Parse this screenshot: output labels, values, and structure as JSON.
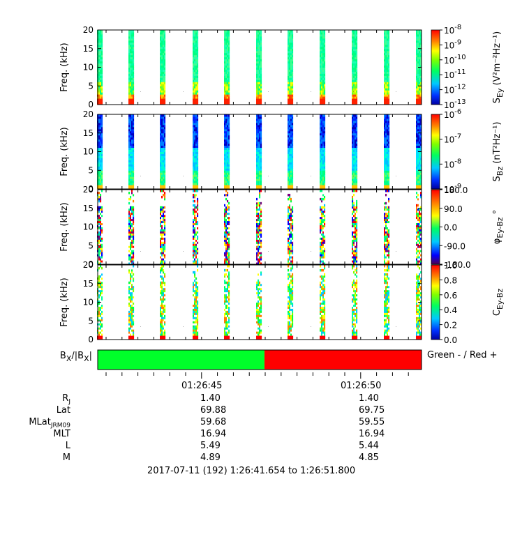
{
  "chart_data": [
    {
      "type": "heatmap",
      "ylabel": "Freq. (kHz)",
      "yticks": [
        "0",
        "5",
        "10",
        "15",
        "20"
      ],
      "ylim": [
        0,
        20
      ],
      "colorbar_label": "S",
      "colorbar_sub": "Ey",
      "colorbar_unit": "(V²m⁻²Hz⁻¹)",
      "colorbar_ticks": [
        "10-8",
        "10-9",
        "10-10",
        "10-11",
        "10-12",
        "10-13"
      ],
      "colorbar_log": true,
      "colormap": "rainbow"
    },
    {
      "type": "heatmap",
      "ylabel": "Freq. (kHz)",
      "yticks": [
        "0",
        "5",
        "10",
        "15",
        "20"
      ],
      "ylim": [
        0,
        20
      ],
      "colorbar_label": "S",
      "colorbar_sub": "Bz",
      "colorbar_unit": "(nT²Hz⁻¹)",
      "colorbar_ticks": [
        "10-6",
        "10-7",
        "10-8",
        "10-9"
      ],
      "colorbar_log": true,
      "colormap": "rainbow"
    },
    {
      "type": "heatmap",
      "ylabel": "Freq. (kHz)",
      "yticks": [
        "0",
        "5",
        "10",
        "15",
        "20"
      ],
      "ylim": [
        0,
        20
      ],
      "colorbar_label": "φ",
      "colorbar_sub": "Ey-Bz",
      "colorbar_unit": "°",
      "colorbar_ticks": [
        "180.0",
        "90.0",
        "0.0",
        "-90.0",
        "-180.0"
      ],
      "colorbar_range": [
        -180,
        180
      ],
      "colormap": "phase"
    },
    {
      "type": "heatmap",
      "ylabel": "Freq. (kHz)",
      "yticks": [
        "0",
        "5",
        "10",
        "15",
        "20"
      ],
      "ylim": [
        0,
        20
      ],
      "colorbar_label": "C",
      "colorbar_sub": "Ey-Bz",
      "colorbar_unit": "",
      "colorbar_ticks": [
        "1.0",
        "0.8",
        "0.6",
        "0.4",
        "0.2",
        "0.0"
      ],
      "colorbar_range": [
        0,
        1
      ],
      "colormap": "rainbow"
    },
    {
      "type": "bar",
      "ylabel": "B",
      "ylabel_sub": "X",
      "ylabel_tail": "/|B",
      "ylabel_sub2": "X",
      "ylabel_end": "|",
      "segments": [
        {
          "sign": "-",
          "color": "#00ff2a",
          "fraction_start": 0.0,
          "fraction_end": 0.515
        },
        {
          "sign": "+",
          "color": "#ff0000",
          "fraction_start": 0.515,
          "fraction_end": 1.0
        }
      ],
      "legend": "Green - / Red +"
    }
  ],
  "time_axis": {
    "ticks": [
      "01:26:45",
      "01:26:50"
    ],
    "range_label": "2017-07-11 (192) 1:26:41.654 to 1:26:51.800",
    "start": "1:26:41.654",
    "end": "1:26:51.800",
    "burst_count": 11
  },
  "ephemeris": {
    "rows": [
      {
        "label": "R",
        "sub": "J",
        "values": [
          "1.40",
          "1.40"
        ]
      },
      {
        "label": "Lat",
        "sub": "",
        "values": [
          "69.88",
          "69.75"
        ]
      },
      {
        "label": "MLat",
        "sub": "JRM09",
        "values": [
          "59.68",
          "59.55"
        ]
      },
      {
        "label": "MLT",
        "sub": "",
        "values": [
          "16.94",
          "16.94"
        ]
      },
      {
        "label": "L",
        "sub": "",
        "values": [
          "5.49",
          "5.44"
        ]
      },
      {
        "label": "M",
        "sub": "",
        "values": [
          "4.89",
          "4.85"
        ]
      }
    ]
  }
}
